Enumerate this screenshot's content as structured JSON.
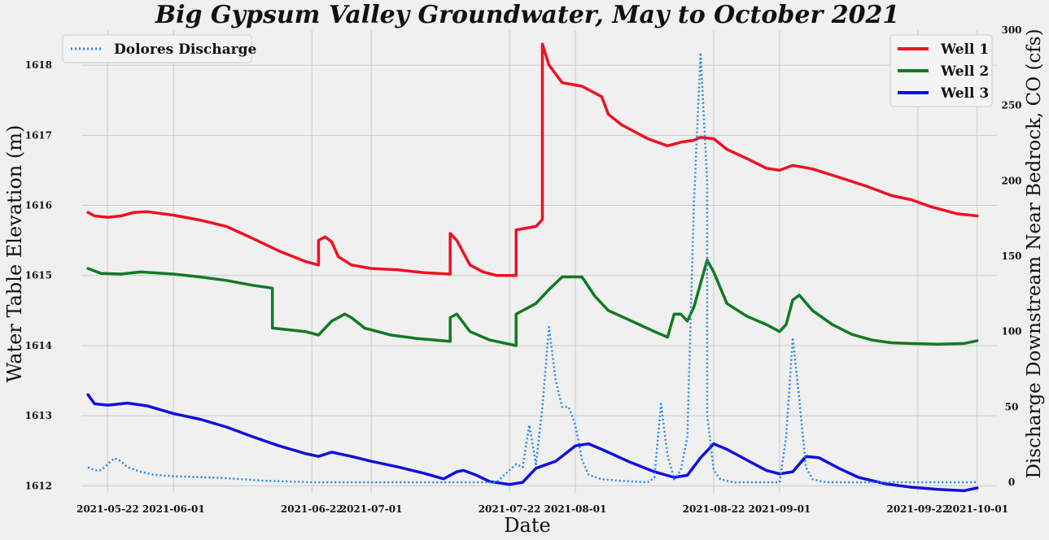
{
  "chart_data": {
    "type": "line",
    "title": "Big Gypsum Valley Groundwater, May to October 2021",
    "xlabel": "Date",
    "ylabel_left": "Water Table Elevation (m)",
    "ylabel_right": "Discharge Downstream Near Bedrock, CO (cfs)",
    "x_range": [
      "2021-05-18",
      "2021-10-04"
    ],
    "ylim_left": [
      1611.9,
      1618.5
    ],
    "ylim_right": [
      -7,
      300
    ],
    "x_ticks": [
      "2021-05-22",
      "2021-06-01",
      "2021-06-22",
      "2021-07-01",
      "2021-07-22",
      "2021-08-01",
      "2021-08-22",
      "2021-09-01",
      "2021-09-22",
      "2021-10-01"
    ],
    "y_ticks_left": [
      1612,
      1613,
      1614,
      1615,
      1616,
      1617,
      1618
    ],
    "y_ticks_right": [
      0,
      50,
      100,
      150,
      200,
      250,
      300
    ],
    "grid": true,
    "legend_left": {
      "placement": "top-left",
      "entries": [
        "Dolores Discharge"
      ]
    },
    "legend_right": {
      "placement": "top-right",
      "entries": [
        "Well 1",
        "Well 2",
        "Well 3"
      ]
    },
    "series": [
      {
        "name": "Well 1",
        "axis": "left",
        "color": "#ee1122",
        "style": "solid",
        "points": [
          [
            "2021-05-19",
            1615.9
          ],
          [
            "2021-05-20",
            1615.85
          ],
          [
            "2021-05-22",
            1615.83
          ],
          [
            "2021-05-24",
            1615.85
          ],
          [
            "2021-05-26",
            1615.9
          ],
          [
            "2021-05-28",
            1615.91
          ],
          [
            "2021-06-01",
            1615.86
          ],
          [
            "2021-06-05",
            1615.79
          ],
          [
            "2021-06-09",
            1615.7
          ],
          [
            "2021-06-13",
            1615.53
          ],
          [
            "2021-06-17",
            1615.35
          ],
          [
            "2021-06-21",
            1615.2
          ],
          [
            "2021-06-23",
            1615.15
          ],
          [
            "2021-06-23",
            1615.5
          ],
          [
            "2021-06-24",
            1615.55
          ],
          [
            "2021-06-25",
            1615.48
          ],
          [
            "2021-06-26",
            1615.27
          ],
          [
            "2021-06-28",
            1615.15
          ],
          [
            "2021-07-01",
            1615.1
          ],
          [
            "2021-07-05",
            1615.08
          ],
          [
            "2021-07-09",
            1615.04
          ],
          [
            "2021-07-13",
            1615.02
          ],
          [
            "2021-07-13",
            1615.6
          ],
          [
            "2021-07-14",
            1615.5
          ],
          [
            "2021-07-16",
            1615.15
          ],
          [
            "2021-07-18",
            1615.05
          ],
          [
            "2021-07-20",
            1615.0
          ],
          [
            "2021-07-23",
            1615.0
          ],
          [
            "2021-07-23",
            1615.65
          ],
          [
            "2021-07-26",
            1615.7
          ],
          [
            "2021-07-27",
            1615.8
          ],
          [
            "2021-07-27",
            1618.3
          ],
          [
            "2021-07-28",
            1618.0
          ],
          [
            "2021-07-30",
            1617.75
          ],
          [
            "2021-08-02",
            1617.7
          ],
          [
            "2021-08-05",
            1617.55
          ],
          [
            "2021-08-06",
            1617.3
          ],
          [
            "2021-08-08",
            1617.15
          ],
          [
            "2021-08-10",
            1617.05
          ],
          [
            "2021-08-12",
            1616.95
          ],
          [
            "2021-08-15",
            1616.85
          ],
          [
            "2021-08-17",
            1616.9
          ],
          [
            "2021-08-19",
            1616.93
          ],
          [
            "2021-08-20",
            1616.97
          ],
          [
            "2021-08-22",
            1616.95
          ],
          [
            "2021-08-24",
            1616.8
          ],
          [
            "2021-08-27",
            1616.67
          ],
          [
            "2021-08-30",
            1616.53
          ],
          [
            "2021-09-01",
            1616.5
          ],
          [
            "2021-09-03",
            1616.57
          ],
          [
            "2021-09-06",
            1616.52
          ],
          [
            "2021-09-10",
            1616.4
          ],
          [
            "2021-09-14",
            1616.28
          ],
          [
            "2021-09-18",
            1616.14
          ],
          [
            "2021-09-21",
            1616.08
          ],
          [
            "2021-09-24",
            1615.98
          ],
          [
            "2021-09-28",
            1615.88
          ],
          [
            "2021-10-01",
            1615.85
          ]
        ]
      },
      {
        "name": "Well 2",
        "axis": "left",
        "color": "#117a22",
        "style": "solid",
        "points": [
          [
            "2021-05-19",
            1615.1
          ],
          [
            "2021-05-21",
            1615.03
          ],
          [
            "2021-05-24",
            1615.02
          ],
          [
            "2021-05-27",
            1615.05
          ],
          [
            "2021-06-01",
            1615.02
          ],
          [
            "2021-06-05",
            1614.98
          ],
          [
            "2021-06-09",
            1614.93
          ],
          [
            "2021-06-13",
            1614.86
          ],
          [
            "2021-06-16",
            1614.82
          ],
          [
            "2021-06-16",
            1614.25
          ],
          [
            "2021-06-18",
            1614.23
          ],
          [
            "2021-06-21",
            1614.2
          ],
          [
            "2021-06-23",
            1614.15
          ],
          [
            "2021-06-25",
            1614.35
          ],
          [
            "2021-06-27",
            1614.45
          ],
          [
            "2021-06-28",
            1614.4
          ],
          [
            "2021-06-30",
            1614.25
          ],
          [
            "2021-07-04",
            1614.15
          ],
          [
            "2021-07-08",
            1614.1
          ],
          [
            "2021-07-13",
            1614.06
          ],
          [
            "2021-07-13",
            1614.4
          ],
          [
            "2021-07-14",
            1614.45
          ],
          [
            "2021-07-16",
            1614.2
          ],
          [
            "2021-07-19",
            1614.08
          ],
          [
            "2021-07-23",
            1614.0
          ],
          [
            "2021-07-23",
            1614.45
          ],
          [
            "2021-07-26",
            1614.6
          ],
          [
            "2021-07-28",
            1614.8
          ],
          [
            "2021-07-30",
            1614.98
          ],
          [
            "2021-08-02",
            1614.98
          ],
          [
            "2021-08-04",
            1614.7
          ],
          [
            "2021-08-06",
            1614.5
          ],
          [
            "2021-08-10",
            1614.33
          ],
          [
            "2021-08-13",
            1614.2
          ],
          [
            "2021-08-15",
            1614.12
          ],
          [
            "2021-08-16",
            1614.45
          ],
          [
            "2021-08-17",
            1614.45
          ],
          [
            "2021-08-18",
            1614.35
          ],
          [
            "2021-08-19",
            1614.55
          ],
          [
            "2021-08-21",
            1615.22
          ],
          [
            "2021-08-22",
            1615.05
          ],
          [
            "2021-08-24",
            1614.6
          ],
          [
            "2021-08-27",
            1614.42
          ],
          [
            "2021-08-30",
            1614.3
          ],
          [
            "2021-09-01",
            1614.2
          ],
          [
            "2021-09-02",
            1614.3
          ],
          [
            "2021-09-03",
            1614.65
          ],
          [
            "2021-09-04",
            1614.72
          ],
          [
            "2021-09-06",
            1614.5
          ],
          [
            "2021-09-09",
            1614.3
          ],
          [
            "2021-09-12",
            1614.16
          ],
          [
            "2021-09-15",
            1614.08
          ],
          [
            "2021-09-18",
            1614.04
          ],
          [
            "2021-09-21",
            1614.03
          ],
          [
            "2021-09-25",
            1614.02
          ],
          [
            "2021-09-29",
            1614.03
          ],
          [
            "2021-10-01",
            1614.07
          ]
        ]
      },
      {
        "name": "Well 3",
        "axis": "left",
        "color": "#1010dd",
        "style": "solid",
        "points": [
          [
            "2021-05-19",
            1613.3
          ],
          [
            "2021-05-20",
            1613.17
          ],
          [
            "2021-05-22",
            1613.15
          ],
          [
            "2021-05-25",
            1613.18
          ],
          [
            "2021-05-28",
            1613.14
          ],
          [
            "2021-06-01",
            1613.03
          ],
          [
            "2021-06-05",
            1612.95
          ],
          [
            "2021-06-09",
            1612.84
          ],
          [
            "2021-06-13",
            1612.7
          ],
          [
            "2021-06-17",
            1612.57
          ],
          [
            "2021-06-21",
            1612.46
          ],
          [
            "2021-06-23",
            1612.42
          ],
          [
            "2021-06-25",
            1612.48
          ],
          [
            "2021-06-28",
            1612.42
          ],
          [
            "2021-07-01",
            1612.35
          ],
          [
            "2021-07-05",
            1612.27
          ],
          [
            "2021-07-09",
            1612.18
          ],
          [
            "2021-07-12",
            1612.1
          ],
          [
            "2021-07-14",
            1612.2
          ],
          [
            "2021-07-15",
            1612.22
          ],
          [
            "2021-07-17",
            1612.15
          ],
          [
            "2021-07-19",
            1612.06
          ],
          [
            "2021-07-22",
            1612.02
          ],
          [
            "2021-07-24",
            1612.05
          ],
          [
            "2021-07-26",
            1612.25
          ],
          [
            "2021-07-29",
            1612.35
          ],
          [
            "2021-08-01",
            1612.57
          ],
          [
            "2021-08-03",
            1612.6
          ],
          [
            "2021-08-05",
            1612.52
          ],
          [
            "2021-08-09",
            1612.35
          ],
          [
            "2021-08-13",
            1612.2
          ],
          [
            "2021-08-16",
            1612.12
          ],
          [
            "2021-08-18",
            1612.15
          ],
          [
            "2021-08-20",
            1612.4
          ],
          [
            "2021-08-22",
            1612.6
          ],
          [
            "2021-08-24",
            1612.52
          ],
          [
            "2021-08-27",
            1612.37
          ],
          [
            "2021-08-30",
            1612.22
          ],
          [
            "2021-09-01",
            1612.17
          ],
          [
            "2021-09-03",
            1612.2
          ],
          [
            "2021-09-05",
            1612.42
          ],
          [
            "2021-09-07",
            1612.4
          ],
          [
            "2021-09-10",
            1612.25
          ],
          [
            "2021-09-13",
            1612.12
          ],
          [
            "2021-09-17",
            1612.03
          ],
          [
            "2021-09-21",
            1611.98
          ],
          [
            "2021-09-25",
            1611.95
          ],
          [
            "2021-09-29",
            1611.93
          ],
          [
            "2021-10-01",
            1611.97
          ]
        ]
      },
      {
        "name": "Dolores Discharge",
        "axis": "right",
        "color": "#2288ee",
        "style": "dotted",
        "points": [
          [
            "2021-05-19",
            10
          ],
          [
            "2021-05-20",
            8
          ],
          [
            "2021-05-21",
            8
          ],
          [
            "2021-05-22",
            12
          ],
          [
            "2021-05-23",
            16
          ],
          [
            "2021-05-24",
            14
          ],
          [
            "2021-05-25",
            10
          ],
          [
            "2021-05-27",
            7
          ],
          [
            "2021-05-29",
            5
          ],
          [
            "2021-06-01",
            4
          ],
          [
            "2021-06-08",
            3
          ],
          [
            "2021-06-15",
            1
          ],
          [
            "2021-06-22",
            0
          ],
          [
            "2021-07-20",
            0
          ],
          [
            "2021-07-22",
            8
          ],
          [
            "2021-07-23",
            12
          ],
          [
            "2021-07-24",
            10
          ],
          [
            "2021-07-25",
            38
          ],
          [
            "2021-07-26",
            12
          ],
          [
            "2021-07-27",
            50
          ],
          [
            "2021-07-28",
            103
          ],
          [
            "2021-07-29",
            68
          ],
          [
            "2021-07-30",
            50
          ],
          [
            "2021-07-31",
            50
          ],
          [
            "2021-08-01",
            38
          ],
          [
            "2021-08-02",
            15
          ],
          [
            "2021-08-03",
            5
          ],
          [
            "2021-08-05",
            2
          ],
          [
            "2021-08-08",
            1
          ],
          [
            "2021-08-12",
            0
          ],
          [
            "2021-08-13",
            3
          ],
          [
            "2021-08-14",
            52
          ],
          [
            "2021-08-15",
            18
          ],
          [
            "2021-08-16",
            2
          ],
          [
            "2021-08-17",
            8
          ],
          [
            "2021-08-18",
            30
          ],
          [
            "2021-08-19",
            185
          ],
          [
            "2021-08-20",
            285
          ],
          [
            "2021-08-21",
            200
          ],
          [
            "2021-08-21",
            45
          ],
          [
            "2021-08-22",
            8
          ],
          [
            "2021-08-23",
            2
          ],
          [
            "2021-08-25",
            0
          ],
          [
            "2021-09-01",
            0
          ],
          [
            "2021-09-02",
            30
          ],
          [
            "2021-09-03",
            96
          ],
          [
            "2021-09-04",
            55
          ],
          [
            "2021-09-05",
            10
          ],
          [
            "2021-09-06",
            2
          ],
          [
            "2021-09-08",
            0
          ],
          [
            "2021-10-01",
            0
          ]
        ]
      }
    ]
  }
}
